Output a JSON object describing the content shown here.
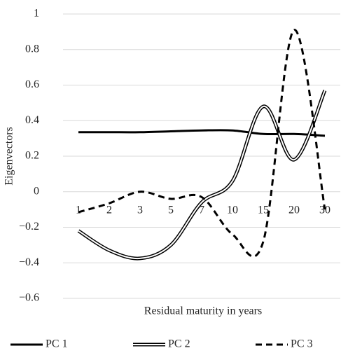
{
  "chart_data": {
    "type": "line",
    "x_label": "Residual maturity in years",
    "y_label": "Eigenvectors",
    "categories": [
      "1",
      "2",
      "3",
      "5",
      "7",
      "10",
      "15",
      "20",
      "30"
    ],
    "series": [
      {
        "name": "PC 1",
        "color": "#000000",
        "line_style": "solid",
        "values": [
          0.335,
          0.335,
          0.335,
          0.34,
          0.345,
          0.345,
          0.325,
          0.325,
          0.315
        ]
      },
      {
        "name": "PC 2",
        "color": "#000000",
        "line_style": "double",
        "values": [
          -0.22,
          -0.33,
          -0.375,
          -0.3,
          -0.06,
          0.06,
          0.48,
          0.18,
          0.57
        ]
      },
      {
        "name": "PC 3",
        "color": "#000000",
        "line_style": "dashed",
        "values": [
          -0.115,
          -0.065,
          0,
          -0.04,
          -0.03,
          -0.24,
          -0.28,
          0.91,
          -0.1
        ]
      }
    ],
    "ylim": [
      -0.6,
      1
    ],
    "yticks": [
      {
        "value": -0.6,
        "label": "−0.6"
      },
      {
        "value": -0.4,
        "label": "−0.4"
      },
      {
        "value": -0.2,
        "label": "−0.2"
      },
      0,
      0.2,
      0.4,
      0.6,
      0.8,
      1
    ],
    "grid": true,
    "legend": "bottom"
  }
}
